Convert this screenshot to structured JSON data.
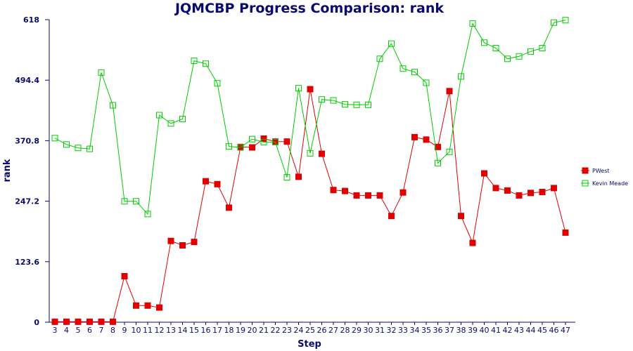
{
  "chart_data": {
    "type": "line",
    "title": "JQMCBP Progress Comparison: rank",
    "xlabel": "Step",
    "ylabel": "rank",
    "x": [
      3,
      4,
      5,
      6,
      7,
      8,
      9,
      10,
      11,
      12,
      13,
      14,
      15,
      16,
      17,
      18,
      19,
      20,
      21,
      22,
      23,
      24,
      25,
      26,
      27,
      28,
      29,
      30,
      31,
      32,
      33,
      34,
      35,
      36,
      37,
      38,
      39,
      40,
      41,
      42,
      43,
      44,
      45,
      46,
      47
    ],
    "xlim": [
      3,
      47
    ],
    "ylim": [
      0,
      618
    ],
    "yticks": [
      "0",
      "123.6",
      "247.2",
      "370.8",
      "494.4",
      "618"
    ],
    "grid": false,
    "legend_position": "right",
    "series": [
      {
        "name": "PWest",
        "color": "#e00000",
        "marker": "filled-square",
        "values": [
          1,
          1,
          1,
          1,
          1,
          1,
          94,
          34,
          34,
          30,
          166,
          157,
          164,
          288,
          282,
          234,
          358,
          357,
          375,
          369,
          369,
          297,
          476,
          344,
          270,
          268,
          259,
          259,
          259,
          217,
          265,
          378,
          373,
          358,
          472,
          217,
          162,
          304,
          274,
          269,
          259,
          264,
          266,
          274,
          183
        ]
      },
      {
        "name": "Kevin Meade",
        "color": "#00cc00",
        "marker": "open-square",
        "values": [
          376,
          363,
          356,
          354,
          510,
          443,
          247,
          247,
          221,
          423,
          406,
          415,
          534,
          528,
          488,
          359,
          357,
          374,
          368,
          368,
          296,
          478,
          345,
          455,
          453,
          445,
          444,
          444,
          538,
          569,
          518,
          511,
          489,
          325,
          348,
          502,
          610,
          571,
          560,
          538,
          543,
          553,
          560,
          612,
          617
        ]
      }
    ]
  }
}
